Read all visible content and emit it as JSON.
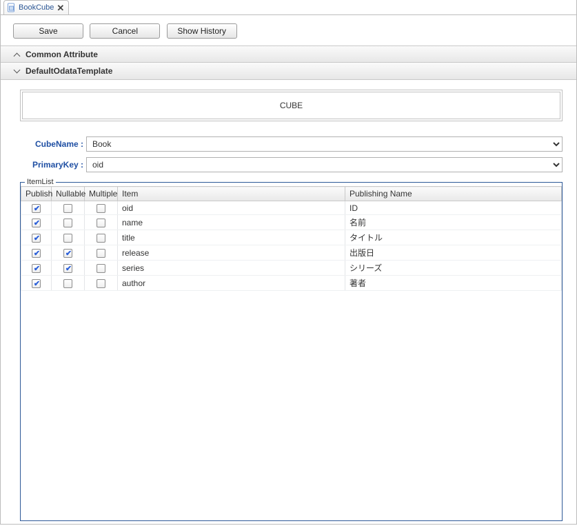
{
  "tab": {
    "title": "BookCube"
  },
  "toolbar": {
    "save": "Save",
    "cancel": "Cancel",
    "show_history": "Show History"
  },
  "sections": {
    "common_attribute": "Common Attribute",
    "default_odata_template": "DefaultOdataTemplate"
  },
  "cube_label": "CUBE",
  "form": {
    "cube_name_label": "CubeName :",
    "cube_name_value": "Book",
    "primary_key_label": "PrimaryKey :",
    "primary_key_value": "oid"
  },
  "itemlist": {
    "legend": "ItemList",
    "columns": {
      "publish": "Publish",
      "nullable": "Nullable",
      "multiple": "Multiple",
      "item": "Item",
      "publishing_name": "Publishing Name"
    },
    "rows": [
      {
        "publish": true,
        "nullable": false,
        "multiple": false,
        "item": "oid",
        "publishing_name": "ID"
      },
      {
        "publish": true,
        "nullable": false,
        "multiple": false,
        "item": "name",
        "publishing_name": "名前"
      },
      {
        "publish": true,
        "nullable": false,
        "multiple": false,
        "item": "title",
        "publishing_name": "タイトル"
      },
      {
        "publish": true,
        "nullable": true,
        "multiple": false,
        "item": "release",
        "publishing_name": "出版日"
      },
      {
        "publish": true,
        "nullable": true,
        "multiple": false,
        "item": "series",
        "publishing_name": "シリーズ"
      },
      {
        "publish": true,
        "nullable": false,
        "multiple": false,
        "item": "author",
        "publishing_name": "著者"
      }
    ]
  },
  "colors": {
    "link_blue": "#2b5796",
    "border_gray": "#bcbcbc",
    "header_grad_top": "#fafafa",
    "header_grad_bot": "#e7e7e7"
  }
}
